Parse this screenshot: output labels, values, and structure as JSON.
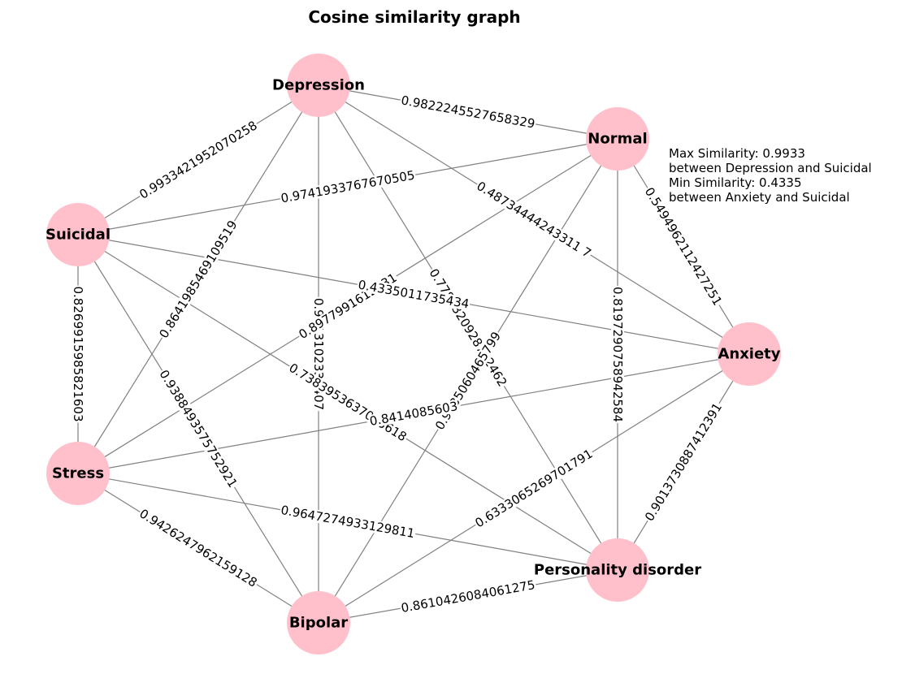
{
  "title": "Cosine similarity graph",
  "node_color": "#ffc0cb",
  "edge_color": "#808080",
  "nodes": [
    {
      "id": "depression",
      "label": "Depression"
    },
    {
      "id": "normal",
      "label": "Normal"
    },
    {
      "id": "suicidal",
      "label": "Suicidal"
    },
    {
      "id": "anxiety",
      "label": "Anxiety"
    },
    {
      "id": "stress",
      "label": "Stress"
    },
    {
      "id": "personality",
      "label": "Personality disorder"
    },
    {
      "id": "bipolar",
      "label": "Bipolar"
    }
  ],
  "edges": [
    {
      "source": "depression",
      "target": "normal",
      "label": "0.9822245527658329"
    },
    {
      "source": "depression",
      "target": "suicidal",
      "label": "0.9933421952070258"
    },
    {
      "source": "depression",
      "target": "anxiety",
      "label": "0.48734444243311 7"
    },
    {
      "source": "depression",
      "target": "stress",
      "label": "0.8641985469109519"
    },
    {
      "source": "depression",
      "target": "personality",
      "label": "0.7782320928742462"
    },
    {
      "source": "depression",
      "target": "bipolar",
      "label": "0.9613102333407"
    },
    {
      "source": "normal",
      "target": "suicidal",
      "label": "0.9741933767670505"
    },
    {
      "source": "normal",
      "target": "anxiety",
      "label": "0.5494962112427251"
    },
    {
      "source": "normal",
      "target": "stress",
      "label": "0.8977991612131"
    },
    {
      "source": "normal",
      "target": "personality",
      "label": "0.8197290758942584"
    },
    {
      "source": "normal",
      "target": "bipolar",
      "label": "0.9785060465799"
    },
    {
      "source": "suicidal",
      "target": "anxiety",
      "label": "0.4335011735434"
    },
    {
      "source": "suicidal",
      "target": "stress",
      "label": "0.8269915985821603"
    },
    {
      "source": "suicidal",
      "target": "personality",
      "label": "0.7383953637095618"
    },
    {
      "source": "suicidal",
      "target": "bipolar",
      "label": "0.9388493575752921"
    },
    {
      "source": "anxiety",
      "target": "stress",
      "label": "0.8414085603"
    },
    {
      "source": "anxiety",
      "target": "personality",
      "label": "0.9013730887412391"
    },
    {
      "source": "anxiety",
      "target": "bipolar",
      "label": "0.6333065269701791"
    },
    {
      "source": "stress",
      "target": "personality",
      "label": "0.9647274933129811"
    },
    {
      "source": "stress",
      "target": "bipolar",
      "label": "0.9426247962159128"
    },
    {
      "source": "personality",
      "target": "bipolar",
      "label": "0.8610426084061275"
    }
  ],
  "annotation": {
    "line1": "Max Similarity: 0.9933",
    "line2": "between Depression and Suicidal",
    "line3": "Min Similarity: 0.4335",
    "line4": "between Anxiety and Suicidal"
  }
}
